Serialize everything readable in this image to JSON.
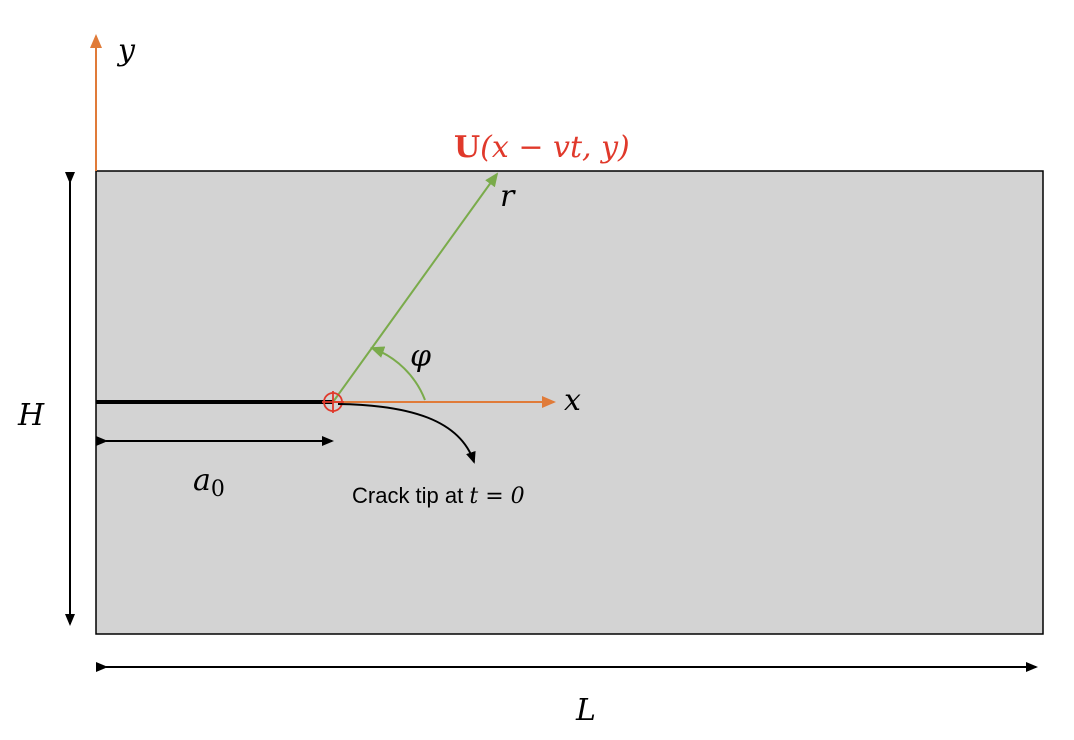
{
  "colors": {
    "plate_fill": "#d3d3d3",
    "plate_stroke": "#000000",
    "axis_orange": "#e07b39",
    "polar_green": "#7aab4b",
    "load_red": "#e0392b",
    "crack_black": "#000000"
  },
  "labels": {
    "y_axis": "y",
    "x_axis": "x",
    "r_axis": "r",
    "angle": "φ",
    "height": "H",
    "length": "L",
    "crack_length_base": "a",
    "crack_length_sub": "0",
    "displacement_bold": "U",
    "displacement_args": "(x − vt, y)",
    "crack_tip_text": "Crack tip at ",
    "crack_tip_math": "t = 0"
  },
  "icons": {
    "crack_tip_marker": "crosshair-circle-icon"
  }
}
